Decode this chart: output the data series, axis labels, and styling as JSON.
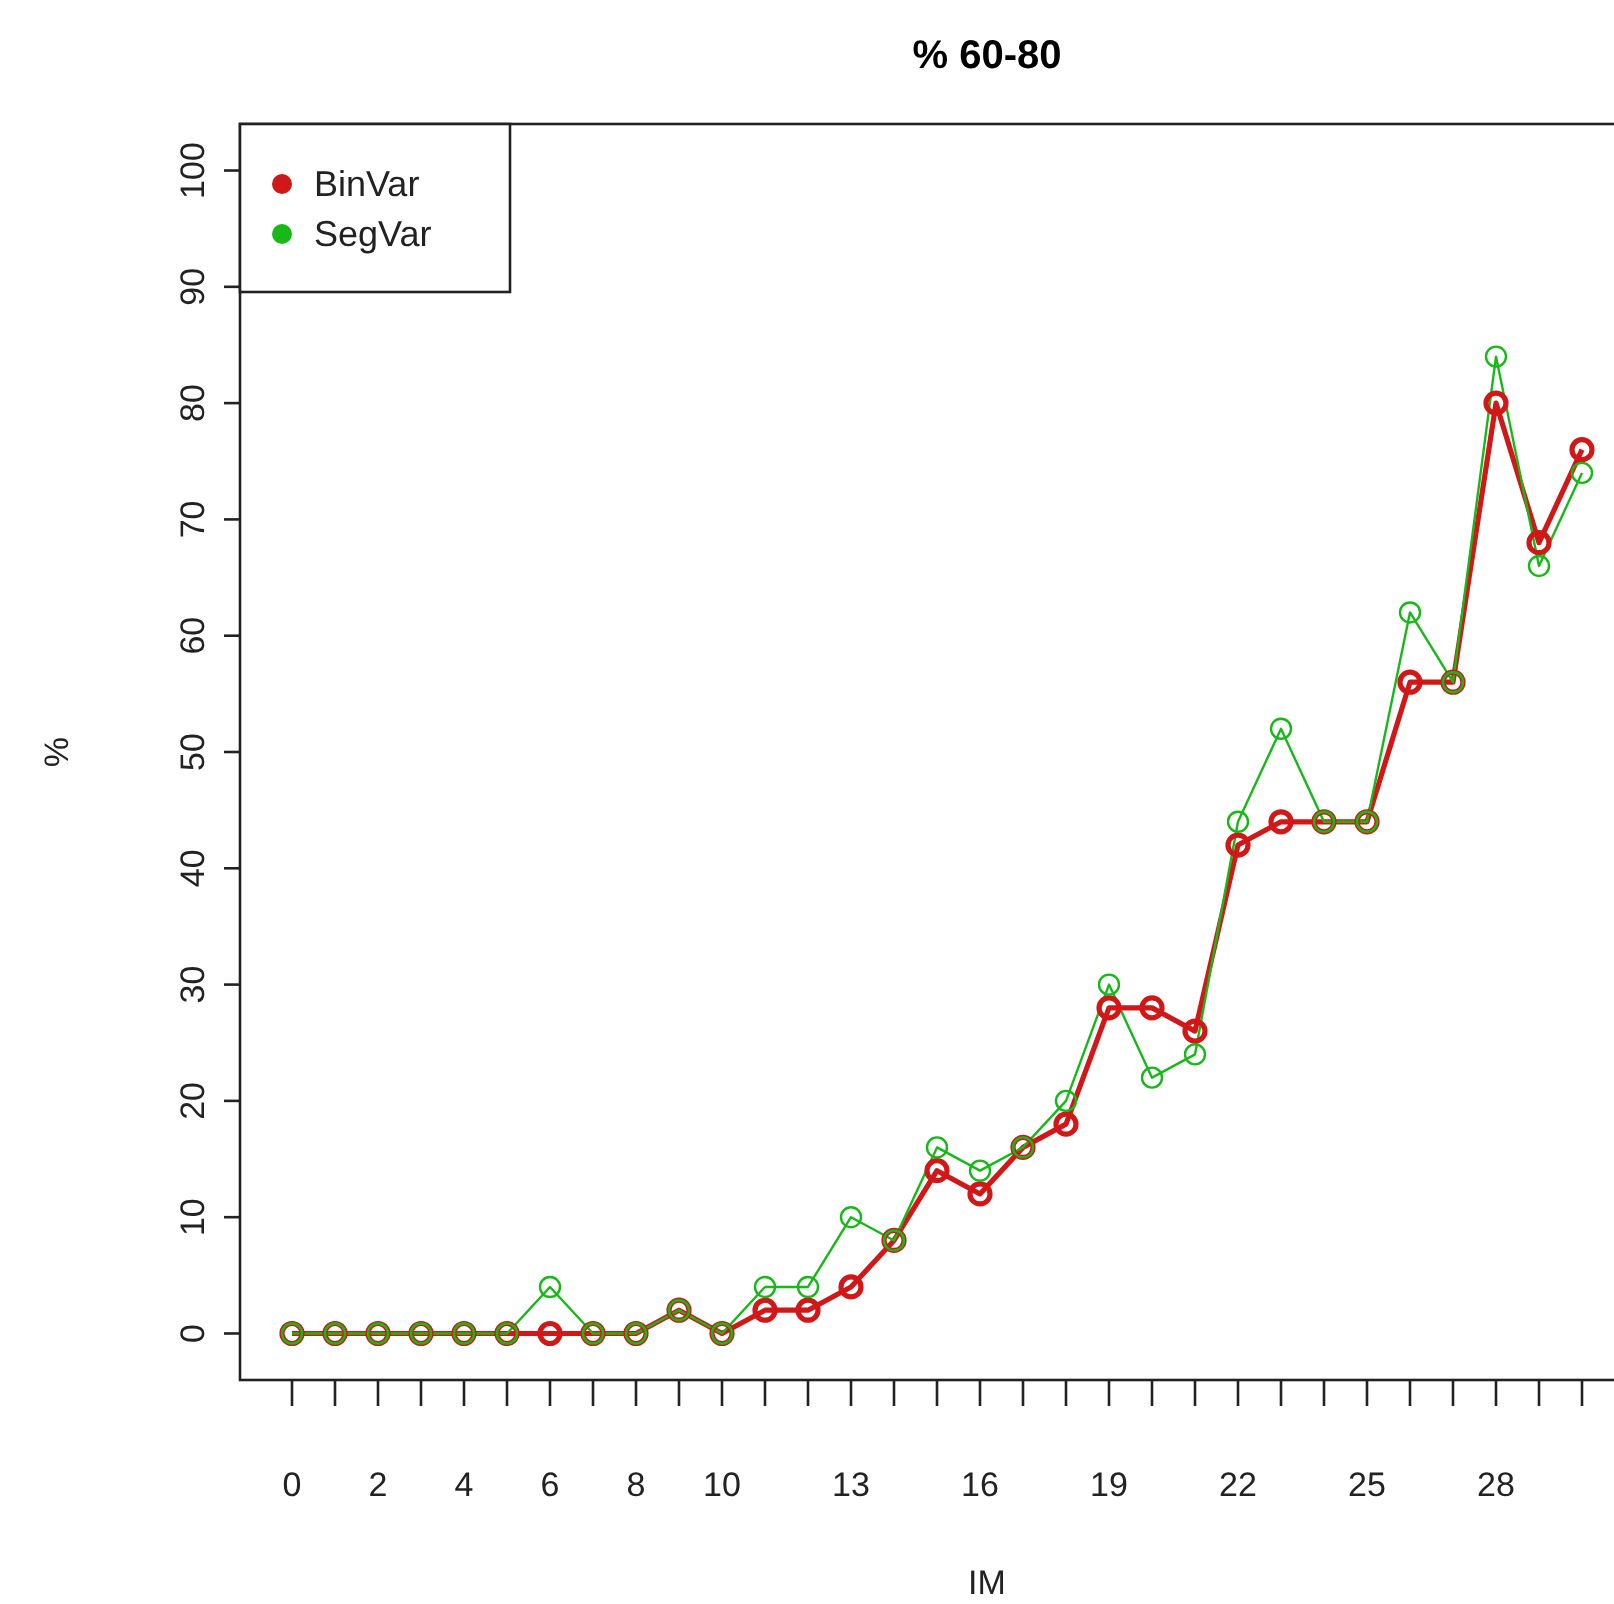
{
  "chart_data": {
    "type": "line",
    "title": "% 60-80",
    "xlabel": "IM",
    "ylabel": "%",
    "categories": [
      "0",
      null,
      "2",
      null,
      "4",
      null,
      "6",
      null,
      "8",
      null,
      "10",
      null,
      null,
      "13",
      null,
      null,
      "16",
      null,
      null,
      "19",
      null,
      null,
      "22",
      null,
      null,
      "25",
      null,
      null,
      "28",
      null,
      null
    ],
    "series": [
      {
        "name": "BinVar",
        "color": "#d01818",
        "values": [
          0,
          0,
          0,
          0,
          0,
          0,
          0,
          0,
          0,
          2,
          0,
          2,
          2,
          4,
          8,
          14,
          12,
          16,
          18,
          28,
          28,
          26,
          42,
          44,
          44,
          44,
          56,
          56,
          80,
          68,
          76
        ]
      },
      {
        "name": "SegVar",
        "color": "#18b818",
        "values": [
          0,
          0,
          0,
          0,
          0,
          0,
          4,
          0,
          0,
          2,
          0,
          4,
          4,
          10,
          8,
          16,
          14,
          16,
          20,
          30,
          22,
          24,
          44,
          52,
          44,
          44,
          62,
          56,
          84,
          66,
          74
        ]
      }
    ],
    "ylim": [
      -4,
      104
    ],
    "yticks": [
      0,
      10,
      20,
      30,
      40,
      50,
      60,
      70,
      80,
      90,
      100
    ],
    "grid": false,
    "legend": "top left",
    "marker": "circle"
  }
}
